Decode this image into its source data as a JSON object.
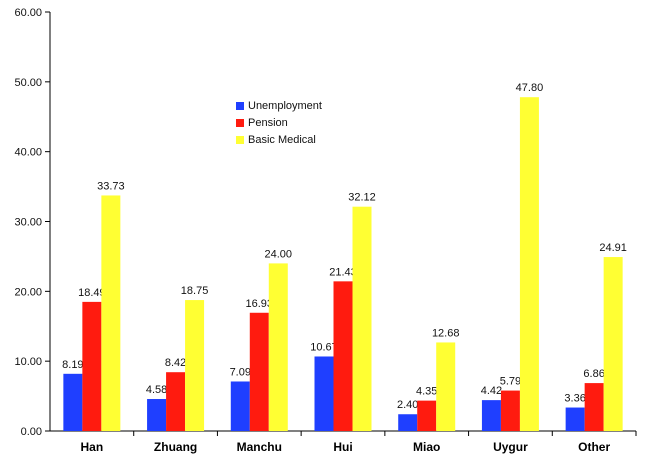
{
  "chart_data": {
    "type": "bar",
    "title": "",
    "xlabel": "",
    "ylabel": "",
    "categories": [
      "Han",
      "Zhuang",
      "Manchu",
      "Hui",
      "Miao",
      "Uygur",
      "Other"
    ],
    "series": [
      {
        "name": "Unemployment",
        "color": "#1f3fff",
        "values": [
          8.19,
          4.58,
          7.09,
          10.67,
          2.4,
          4.42,
          3.36
        ],
        "labels": [
          "8.19",
          "4.58",
          "7.09",
          "10.67",
          "2.40",
          "4.42",
          "3.36"
        ]
      },
      {
        "name": "Pension",
        "color": "#ff1b0f",
        "values": [
          18.49,
          8.42,
          16.93,
          21.43,
          4.35,
          5.79,
          6.86
        ],
        "labels": [
          "18.49",
          "8.42",
          "16.93",
          "21.43",
          "4.35",
          "5.79",
          "6.86"
        ]
      },
      {
        "name": "Basic Medical",
        "color": "#ffff33",
        "values": [
          33.73,
          18.75,
          24.0,
          32.12,
          12.68,
          47.8,
          24.91
        ],
        "labels": [
          "33.73",
          "18.75",
          "24.00",
          "32.12",
          "12.68",
          "47.80",
          "24.91"
        ]
      }
    ],
    "ylim": [
      0,
      60
    ],
    "yticks": [
      0,
      10,
      20,
      30,
      40,
      50,
      60
    ],
    "ytick_labels": [
      "0.00",
      "10.00",
      "20.00",
      "30.00",
      "40.00",
      "50.00",
      "60.00"
    ],
    "legend_position": "top-center",
    "grid": false
  }
}
